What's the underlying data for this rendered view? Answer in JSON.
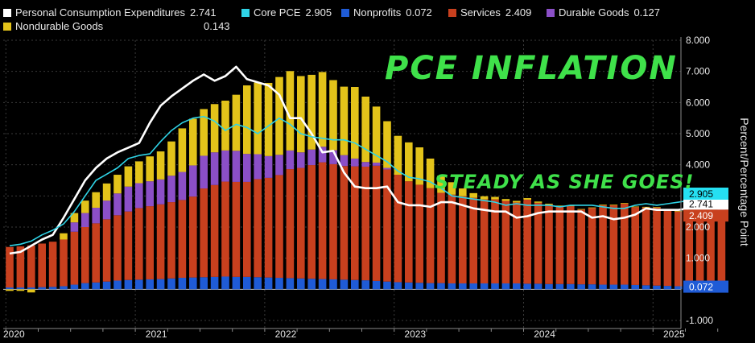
{
  "legend": {
    "pce": {
      "label": "Personal Consumption Expenditures",
      "value": "2.741",
      "color": "#ffffff"
    },
    "core": {
      "label": "Core PCE",
      "value": "2.905",
      "color": "#2fd3e6"
    },
    "nonprofits": {
      "label": "Nonprofits",
      "value": "0.072",
      "color": "#1f5bd6"
    },
    "services": {
      "label": "Services",
      "value": "2.409",
      "color": "#c8401e"
    },
    "durable": {
      "label": "Durable Goods",
      "value": "0.127",
      "color": "#8b4fc7"
    },
    "nondurable": {
      "label": "Nondurable Goods",
      "value": "0.143",
      "color": "#e3c31a"
    }
  },
  "annotations": {
    "title_hand": "PCE INFLATION",
    "note_hand": "STEADY AS SHE GOES!"
  },
  "badges": {
    "core": "2.905",
    "pce": "2.741",
    "services": "2.409",
    "nonprofits": "0.072"
  },
  "chart_data": {
    "type": "bar",
    "stacked": true,
    "ylabel": "Percent/Percentage Point",
    "ylim": [
      -1.0,
      8.0
    ],
    "y_ticks": [
      "-1.000",
      "1.000",
      "2.000",
      "3.000",
      "4.000",
      "5.000",
      "6.000",
      "7.000",
      "8.000"
    ],
    "y_tick_values": [
      -1,
      1,
      2,
      3,
      4,
      5,
      6,
      7,
      8
    ],
    "x_labels": [
      "2020",
      "2021",
      "2022",
      "2023",
      "2024",
      "2025"
    ],
    "x_label_months": [
      0,
      12,
      24,
      36,
      48,
      60
    ],
    "x": [
      "Jan 2020",
      "Feb 2020",
      "Mar 2020",
      "Apr 2020",
      "May 2020",
      "Jun 2020",
      "Jul 2020",
      "Aug 2020",
      "Sep 2020",
      "Oct 2020",
      "Nov 2020",
      "Dec 2020",
      "Jan 2021",
      "Feb 2021",
      "Mar 2021",
      "Apr 2021",
      "May 2021",
      "Jun 2021",
      "Jul 2021",
      "Aug 2021",
      "Sep 2021",
      "Oct 2021",
      "Nov 2021",
      "Dec 2021",
      "Jan 2022",
      "Feb 2022",
      "Mar 2022",
      "Apr 2022",
      "May 2022",
      "Jun 2022",
      "Jul 2022",
      "Aug 2022",
      "Sep 2022",
      "Oct 2022",
      "Nov 2022",
      "Dec 2022",
      "Jan 2023",
      "Feb 2023",
      "Mar 2023",
      "Apr 2023",
      "May 2023",
      "Jun 2023",
      "Jul 2023",
      "Aug 2023",
      "Sep 2023",
      "Oct 2023",
      "Nov 2023",
      "Dec 2023",
      "Jan 2024",
      "Feb 2024",
      "Mar 2024",
      "Apr 2024",
      "May 2024",
      "Jun 2024",
      "Jul 2024",
      "Aug 2024",
      "Sep 2024",
      "Oct 2024",
      "Nov 2024",
      "Dec 2024",
      "Jan 2025",
      "Feb 2025",
      "Mar 2025",
      "Apr 2025",
      "May 2025",
      "Jun 2025",
      "Jul 2025"
    ],
    "series": [
      {
        "name": "Nonprofits",
        "type": "bar",
        "values": [
          0.06,
          0.06,
          0.06,
          0.07,
          0.08,
          0.1,
          0.15,
          0.2,
          0.22,
          0.25,
          0.28,
          0.3,
          0.31,
          0.32,
          0.33,
          0.35,
          0.37,
          0.38,
          0.39,
          0.4,
          0.41,
          0.4,
          0.4,
          0.39,
          0.38,
          0.37,
          0.36,
          0.35,
          0.34,
          0.33,
          0.32,
          0.31,
          0.3,
          0.29,
          0.27,
          0.25,
          0.23,
          0.22,
          0.21,
          0.2,
          0.2,
          0.19,
          0.19,
          0.19,
          0.19,
          0.19,
          0.19,
          0.19,
          0.18,
          0.18,
          0.17,
          0.17,
          0.17,
          0.16,
          0.16,
          0.15,
          0.15,
          0.15,
          0.14,
          0.13,
          0.12,
          0.11,
          0.1,
          0.09,
          0.08,
          0.08,
          0.072
        ]
      },
      {
        "name": "Services",
        "type": "bar",
        "values": [
          1.3,
          1.32,
          1.35,
          1.4,
          1.45,
          1.5,
          1.7,
          1.8,
          1.9,
          2.0,
          2.1,
          2.2,
          2.3,
          2.35,
          2.4,
          2.45,
          2.5,
          2.6,
          2.85,
          2.95,
          3.05,
          3.05,
          3.05,
          3.15,
          3.2,
          3.3,
          3.5,
          3.55,
          3.65,
          3.75,
          3.7,
          3.65,
          3.65,
          3.65,
          3.7,
          3.6,
          3.45,
          3.25,
          3.15,
          3.05,
          2.9,
          2.85,
          2.8,
          2.75,
          2.7,
          2.7,
          2.65,
          2.6,
          2.7,
          2.6,
          2.55,
          2.5,
          2.5,
          2.4,
          2.45,
          2.55,
          2.55,
          2.6,
          2.5,
          2.5,
          2.5,
          2.45,
          2.4,
          2.35,
          2.3,
          2.35,
          2.409
        ]
      },
      {
        "name": "Durable Goods",
        "type": "bar",
        "values": [
          0.0,
          0.0,
          0.0,
          0.0,
          0.0,
          0.0,
          0.3,
          0.45,
          0.5,
          0.6,
          0.7,
          0.8,
          0.8,
          0.8,
          0.8,
          0.85,
          0.9,
          1.0,
          1.05,
          1.05,
          1.0,
          1.0,
          0.9,
          0.8,
          0.7,
          0.65,
          0.6,
          0.5,
          0.5,
          0.5,
          0.45,
          0.35,
          0.25,
          0.15,
          0.1,
          0.05,
          0.0,
          0.0,
          0.0,
          0.0,
          0.0,
          0.0,
          0.0,
          0.0,
          0.0,
          0.0,
          0.0,
          0.0,
          0.0,
          0.0,
          0.0,
          0.0,
          0.0,
          0.0,
          0.0,
          0.0,
          0.0,
          0.0,
          0.0,
          0.0,
          0.0,
          0.0,
          0.0,
          0.0,
          0.0,
          0.0,
          0.127
        ]
      },
      {
        "name": "Nondurable Goods",
        "type": "bar",
        "values": [
          -0.05,
          -0.05,
          -0.1,
          0.0,
          0.0,
          0.2,
          0.3,
          0.4,
          0.5,
          0.55,
          0.6,
          0.65,
          0.7,
          0.8,
          0.9,
          1.1,
          1.4,
          1.5,
          1.5,
          1.55,
          1.6,
          1.8,
          2.2,
          2.3,
          2.35,
          2.5,
          2.55,
          2.45,
          2.4,
          2.4,
          2.25,
          2.2,
          2.3,
          2.1,
          1.8,
          1.5,
          1.25,
          1.25,
          1.2,
          0.95,
          0.55,
          0.4,
          0.25,
          0.15,
          0.1,
          0.08,
          0.06,
          0.05,
          0.05,
          0.04,
          0.03,
          0.02,
          0.02,
          0.02,
          0.02,
          0.02,
          0.02,
          0.02,
          0.02,
          0.02,
          0.02,
          0.02,
          0.02,
          0.02,
          0.02,
          0.1,
          0.143
        ]
      },
      {
        "name": "Personal Consumption Expenditures",
        "type": "line",
        "values": [
          1.15,
          1.2,
          1.4,
          1.6,
          1.75,
          2.3,
          2.9,
          3.5,
          3.9,
          4.2,
          4.4,
          4.55,
          4.7,
          5.35,
          5.9,
          6.2,
          6.45,
          6.7,
          6.9,
          6.7,
          6.85,
          7.15,
          6.75,
          6.65,
          6.55,
          6.25,
          5.5,
          5.5,
          5.0,
          4.4,
          4.45,
          3.75,
          3.3,
          3.25,
          3.25,
          3.3,
          2.8,
          2.7,
          2.7,
          2.65,
          2.8,
          2.8,
          2.7,
          2.6,
          2.55,
          2.5,
          2.5,
          2.3,
          2.35,
          2.45,
          2.5,
          2.5,
          2.5,
          2.5,
          2.3,
          2.35,
          2.25,
          2.3,
          2.4,
          2.6,
          2.55,
          2.55,
          2.55,
          2.6,
          2.7,
          2.65,
          2.741
        ]
      },
      {
        "name": "Core PCE",
        "type": "line",
        "values": [
          1.4,
          1.45,
          1.55,
          1.75,
          1.9,
          2.1,
          2.5,
          3.0,
          3.5,
          3.7,
          3.9,
          4.2,
          4.3,
          4.35,
          4.75,
          5.1,
          5.35,
          5.5,
          5.55,
          5.4,
          5.1,
          5.3,
          5.2,
          5.0,
          5.25,
          5.5,
          5.3,
          5.0,
          4.9,
          4.85,
          4.8,
          4.8,
          4.7,
          4.5,
          4.3,
          4.1,
          3.8,
          3.6,
          3.55,
          3.45,
          3.25,
          3.0,
          2.95,
          2.9,
          2.85,
          2.8,
          2.7,
          2.75,
          2.7,
          2.7,
          2.7,
          2.65,
          2.7,
          2.7,
          2.7,
          2.65,
          2.6,
          2.6,
          2.7,
          2.75,
          2.7,
          2.75,
          2.8,
          2.85,
          2.85,
          2.85,
          2.905
        ]
      }
    ]
  }
}
